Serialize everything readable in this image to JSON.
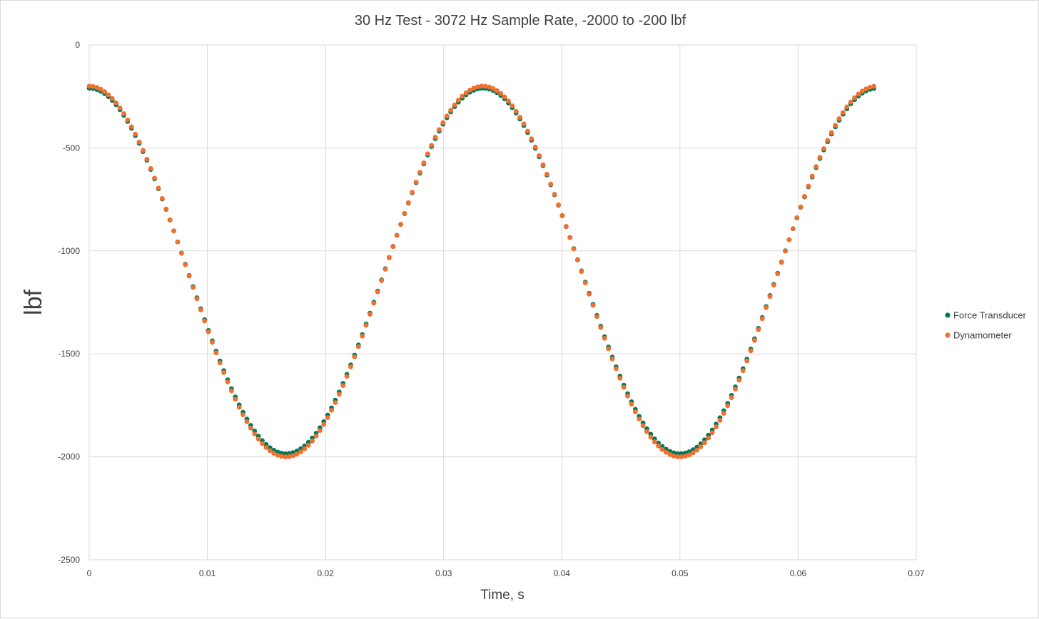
{
  "chart_data": {
    "type": "scatter",
    "title": "30 Hz Test - 3072 Hz Sample Rate, -2000 to -200 lbf",
    "xlabel": "Time, s",
    "ylabel": "lbf",
    "xlim": [
      0,
      0.07
    ],
    "ylim": [
      -2500,
      0
    ],
    "x_ticks": [
      0,
      0.01,
      0.02,
      0.03,
      0.04,
      0.05,
      0.06,
      0.07
    ],
    "x_tick_labels": [
      "0",
      "0.01",
      "0.02",
      "0.03",
      "0.04",
      "0.05",
      "0.06",
      "0.07"
    ],
    "y_ticks": [
      0,
      -500,
      -1000,
      -1500,
      -2000,
      -2500
    ],
    "y_tick_labels": [
      "0",
      "-500",
      "-1000",
      "-1500",
      "-2000",
      "-2500"
    ],
    "grid": true,
    "legend_position": "right",
    "series": [
      {
        "name": "Force Transducer",
        "color": "#00785a",
        "frequency_hz": 30,
        "sample_rate_hz": 3072,
        "x_start": 0,
        "x_end": 0.0667,
        "min": -1985,
        "max": -210,
        "phase": "max at t=0"
      },
      {
        "name": "Dynamometer",
        "color": "#f07030",
        "frequency_hz": 30,
        "sample_rate_hz": 3072,
        "x_start": 0,
        "x_end": 0.0667,
        "min": -2000,
        "max": -200,
        "phase": "max at t=0"
      }
    ]
  }
}
